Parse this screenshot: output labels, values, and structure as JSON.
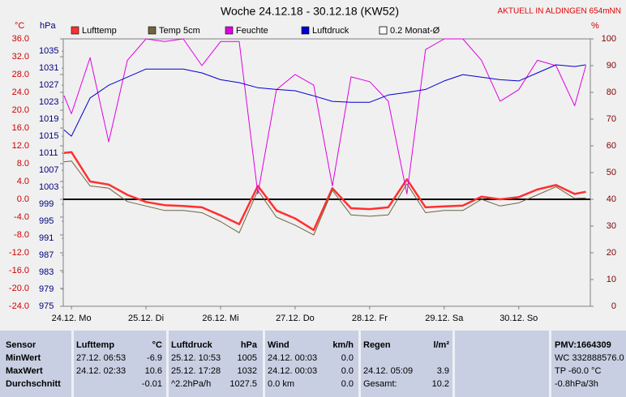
{
  "chart_data": {
    "type": "line",
    "title": "Woche 24.12.18 - 30.12.18 (KW52)",
    "subtitle": "AKTUELL IN ALDINGEN 654mNN",
    "y_label": "°C",
    "y2_label": "hPa",
    "y3_label": "%",
    "xlim": [
      -0.11,
      6.96
    ],
    "xticks": [
      {
        "value": 0,
        "label": "24.12.  Mo"
      },
      {
        "value": 1,
        "label": "25.12.  Di"
      },
      {
        "value": 2,
        "label": "26.12.  Mi"
      },
      {
        "value": 3,
        "label": "27.12.  Do"
      },
      {
        "value": 4,
        "label": "28.12.  Fr"
      },
      {
        "value": 5,
        "label": "29.12.  Sa"
      },
      {
        "value": 6,
        "label": "30.12.  So"
      }
    ],
    "ylim": [
      -24,
      36
    ],
    "yticks": [
      {
        "value": 36,
        "label": "36.0"
      },
      {
        "value": 32,
        "label": "32.0"
      },
      {
        "value": 28,
        "label": "28.0"
      },
      {
        "value": 24,
        "label": "24.0"
      },
      {
        "value": 20,
        "label": "20.0"
      },
      {
        "value": 16,
        "label": "16.0"
      },
      {
        "value": 12,
        "label": "12.0"
      },
      {
        "value": 8,
        "label": "8.0"
      },
      {
        "value": 4,
        "label": "4.0"
      },
      {
        "value": 0,
        "label": "0.0"
      },
      {
        "value": -4,
        "label": "-4.0"
      },
      {
        "value": -8,
        "label": "-8.0"
      },
      {
        "value": -12,
        "label": "-12.0"
      },
      {
        "value": -16,
        "label": "-16.0"
      },
      {
        "value": -20,
        "label": "-20.0"
      },
      {
        "value": -24,
        "label": "-24.0"
      }
    ],
    "y2lim": [
      975,
      1037.9
    ],
    "y2ticks": [
      1035,
      1031,
      1027,
      1023,
      1019,
      1015,
      1011,
      1007,
      1003,
      999,
      995,
      991,
      987,
      983,
      979,
      975
    ],
    "y3lim": [
      0,
      100
    ],
    "y3ticks": [
      100,
      90,
      80,
      70,
      60,
      50,
      40,
      30,
      20,
      10,
      0
    ],
    "grid": false,
    "x": [
      -0.1,
      0,
      0.25,
      0.5,
      0.75,
      1,
      1.25,
      1.5,
      1.75,
      2,
      2.25,
      2.5,
      2.75,
      3,
      3.25,
      3.5,
      3.75,
      4,
      4.25,
      4.5,
      4.75,
      5,
      5.25,
      5.5,
      5.75,
      6,
      6.25,
      6.5,
      6.75,
      6.9
    ],
    "series": [
      {
        "name": "Lufttemp",
        "color": "#ff3030",
        "axis": "y",
        "width": 2.5,
        "values": [
          10.4,
          10.6,
          4.0,
          3.3,
          1.0,
          -0.6,
          -1.3,
          -1.5,
          -1.8,
          -3.6,
          -5.6,
          3.0,
          -2.5,
          -4.3,
          -6.9,
          2.5,
          -2.0,
          -2.2,
          -1.8,
          4.5,
          -1.8,
          -1.6,
          -1.4,
          0.6,
          0.0,
          0.5,
          2.2,
          3.2,
          1.2,
          1.7
        ]
      },
      {
        "name": "Temp 5cm",
        "color": "#6e6440",
        "axis": "y",
        "width": 1,
        "values": [
          8.4,
          8.6,
          3.0,
          2.5,
          -0.5,
          -1.5,
          -2.5,
          -2.5,
          -3.0,
          -5.0,
          -7.5,
          2.0,
          -4.0,
          -5.8,
          -8.0,
          2.0,
          -3.5,
          -3.8,
          -3.5,
          3.5,
          -3.0,
          -2.5,
          -2.5,
          0.0,
          -1.5,
          -0.8,
          1.0,
          2.8,
          0.2,
          0.3
        ]
      },
      {
        "name": "Feuchte",
        "color": "#e000e0",
        "axis": "y3",
        "width": 1,
        "values": [
          78.8,
          72,
          93,
          61.5,
          92,
          100,
          99,
          100,
          90,
          99,
          99,
          42,
          81,
          86.7,
          82.7,
          45,
          85.8,
          84,
          76.7,
          42,
          96,
          100,
          100,
          92,
          76.7,
          81,
          92,
          90,
          75,
          90
        ]
      },
      {
        "name": "Luftdruck",
        "color": "#0000d0",
        "axis": "y2",
        "width": 1,
        "values": [
          1016.5,
          1015,
          1024,
          1027,
          1028.9,
          1030.8,
          1030.8,
          1030.8,
          1029.9,
          1028.3,
          1027.6,
          1026.4,
          1026,
          1025.7,
          1024.5,
          1023.2,
          1023,
          1023,
          1024.7,
          1025.3,
          1026,
          1028,
          1029.5,
          1028.9,
          1028.3,
          1028,
          1029.9,
          1031.8,
          1031.4,
          1031.8
        ]
      }
    ],
    "extra_legend": {
      "name": "0.2 Monat-Ø",
      "color": "#ffffff"
    }
  },
  "table": {
    "row_labels": [
      "Sensor",
      "MinWert",
      "MaxWert",
      "Durchschnitt"
    ],
    "blocks": [
      {
        "title": "Lufttemp",
        "unit": "°C",
        "rows": [
          [
            "27.12.  06:53",
            "-6.9"
          ],
          [
            "24.12.  02:33",
            "10.6"
          ],
          [
            null,
            "-0.01"
          ]
        ]
      },
      {
        "title": "Luftdruck",
        "unit": "hPa",
        "rows": [
          [
            "25.12.  10:53",
            "1005"
          ],
          [
            "25.12.  17:28",
            "1032"
          ],
          [
            "^2.2hPa/h",
            "1027.5"
          ]
        ]
      },
      {
        "title": "Wind",
        "unit": "km/h",
        "rows": [
          [
            "24.12.  00:03",
            "0.0"
          ],
          [
            "24.12.  00:03",
            "0.0"
          ],
          [
            "0.0 km",
            "0.0"
          ]
        ]
      },
      {
        "title": "Regen",
        "unit": "l/m²",
        "rows": [
          [
            null,
            null
          ],
          [
            "24.12.  05:09",
            "3.9"
          ],
          [
            "Gesamt:",
            "10.2"
          ]
        ]
      }
    ],
    "status": [
      "PMV:1664309",
      "WC 332888576.0",
      "TP -60.0 °C",
      "-0.8hPa/3h"
    ]
  }
}
